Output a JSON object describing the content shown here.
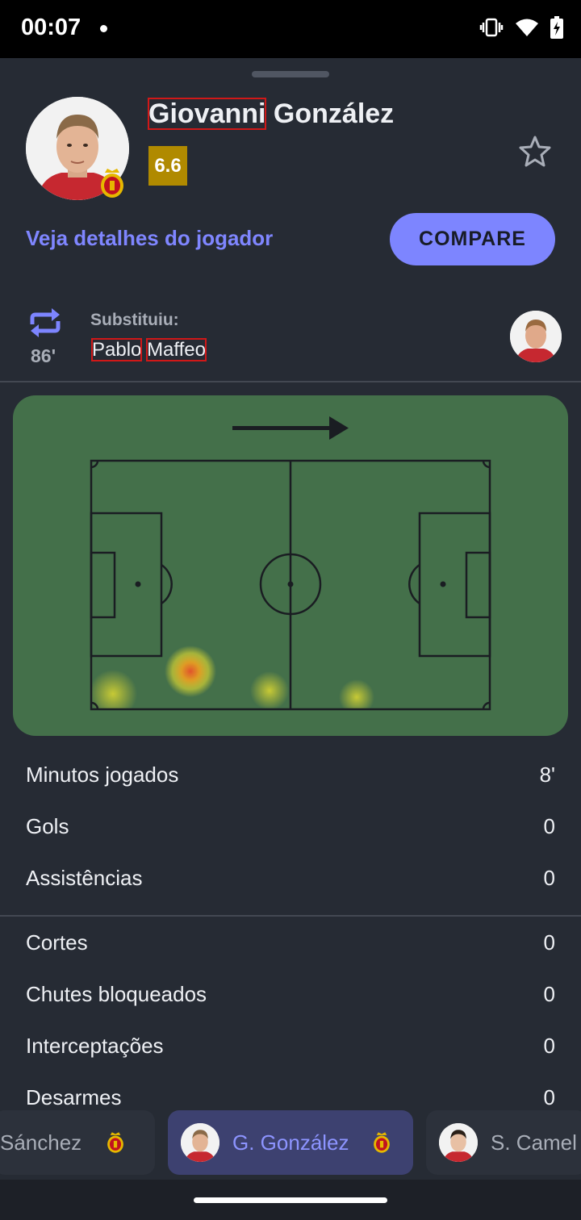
{
  "status_bar": {
    "time": "00:07"
  },
  "header": {
    "first_name": "Giovanni",
    "last_name": "González",
    "rating": "6.6",
    "details_link": "Veja detalhes do jogador",
    "compare_label": "COMPARE"
  },
  "substitution": {
    "label": "Substituiu:",
    "minute": "86'",
    "first_name": "Pablo",
    "last_name": "Maffeo"
  },
  "stats_group_1": [
    {
      "label": "Minutos jogados",
      "value": "8'"
    },
    {
      "label": "Gols",
      "value": "0"
    },
    {
      "label": "Assistências",
      "value": "0"
    }
  ],
  "stats_group_2": [
    {
      "label": "Cortes",
      "value": "0"
    },
    {
      "label": "Chutes bloqueados",
      "value": "0"
    },
    {
      "label": "Interceptações",
      "value": "0"
    },
    {
      "label": "Desarmes",
      "value": "0"
    }
  ],
  "player_tabs": [
    {
      "label": "Sánchez",
      "active": false
    },
    {
      "label": "G. González",
      "active": true
    },
    {
      "label": "S. Camel",
      "active": false
    }
  ],
  "colors": {
    "background": "#262b34",
    "accent": "#7d85ff",
    "rating_bg": "#b08a00",
    "pitch": "#44704a"
  }
}
